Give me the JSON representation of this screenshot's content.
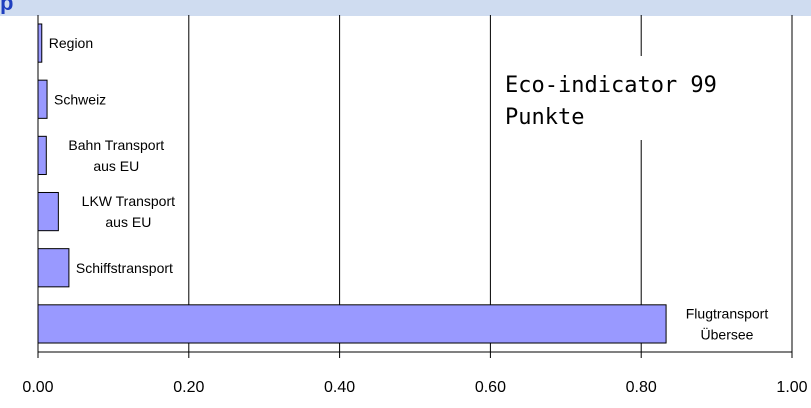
{
  "header": {
    "title_fragment": "p"
  },
  "chart_data": {
    "type": "bar",
    "orientation": "horizontal",
    "title": "",
    "xlabel": "",
    "ylabel": "",
    "xlim": [
      0,
      1.0
    ],
    "xticks": [
      "0.00",
      "0.20",
      "0.40",
      "0.60",
      "0.80",
      "1.00"
    ],
    "grid": true,
    "bar_color": "#9999ff",
    "categories": [
      "Region",
      "Schweiz",
      "Bahn Transport aus EU",
      "LKW Transport aus EU",
      "Schiffstransport",
      "Flugtransport Übersee"
    ],
    "category_label_lines": [
      [
        "Region"
      ],
      [
        "Schweiz"
      ],
      [
        "Bahn Transport",
        "aus EU"
      ],
      [
        "LKW Transport",
        "aus EU"
      ],
      [
        "Schiffstransport"
      ],
      [
        "Flugtransport",
        "Übersee"
      ]
    ],
    "values": [
      0.005,
      0.012,
      0.011,
      0.027,
      0.041,
      0.833
    ],
    "annotation_lines": [
      "Eco-indicator 99",
      "Punkte"
    ]
  }
}
